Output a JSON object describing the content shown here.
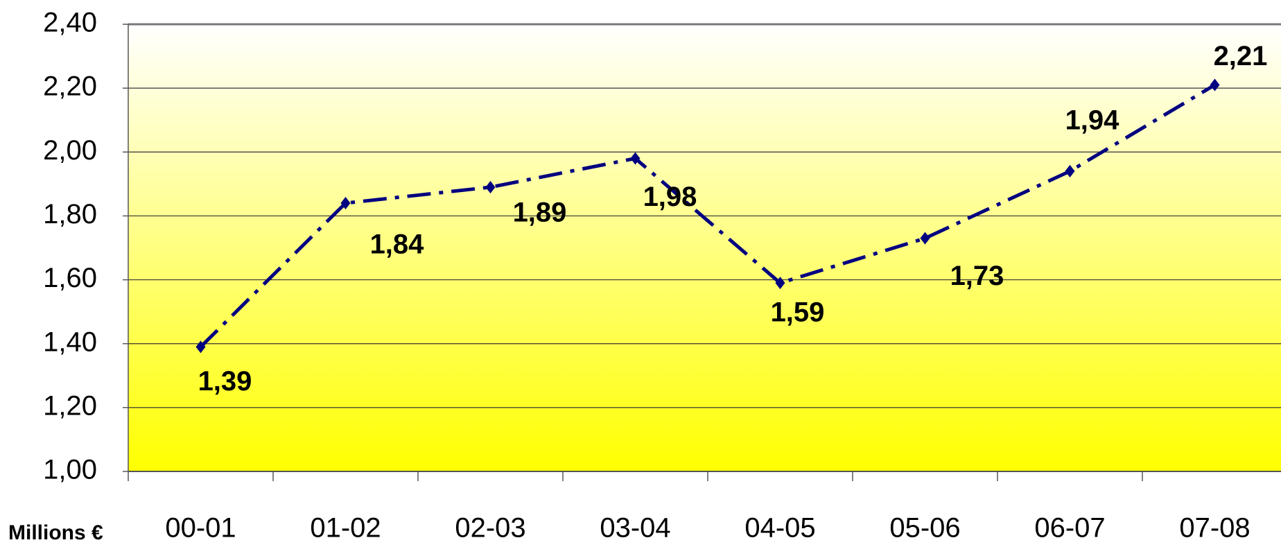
{
  "chart_data": {
    "type": "line",
    "y_axis_label": "Millions €",
    "categories": [
      "00-01",
      "01-02",
      "02-03",
      "03-04",
      "04-05",
      "05-06",
      "06-07",
      "07-08"
    ],
    "series": [
      {
        "name": "Millions €",
        "color": "#000080",
        "values": [
          1.39,
          1.84,
          1.89,
          1.98,
          1.59,
          1.73,
          1.94,
          2.21
        ],
        "value_labels": [
          "1,39",
          "1,84",
          "1,89",
          "1,98",
          "1,59",
          "1,73",
          "1,94",
          "2,21"
        ]
      }
    ],
    "ylim": [
      1.0,
      2.4
    ],
    "yticks": [
      {
        "value": 1.0,
        "label": "1,00"
      },
      {
        "value": 1.2,
        "label": "1,20"
      },
      {
        "value": 1.4,
        "label": "1,40"
      },
      {
        "value": 1.6,
        "label": "1,60"
      },
      {
        "value": 1.8,
        "label": "1,80"
      },
      {
        "value": 2.0,
        "label": "2,00"
      },
      {
        "value": 2.2,
        "label": "2,20"
      },
      {
        "value": 2.4,
        "label": "2,40"
      }
    ],
    "grid": true
  }
}
